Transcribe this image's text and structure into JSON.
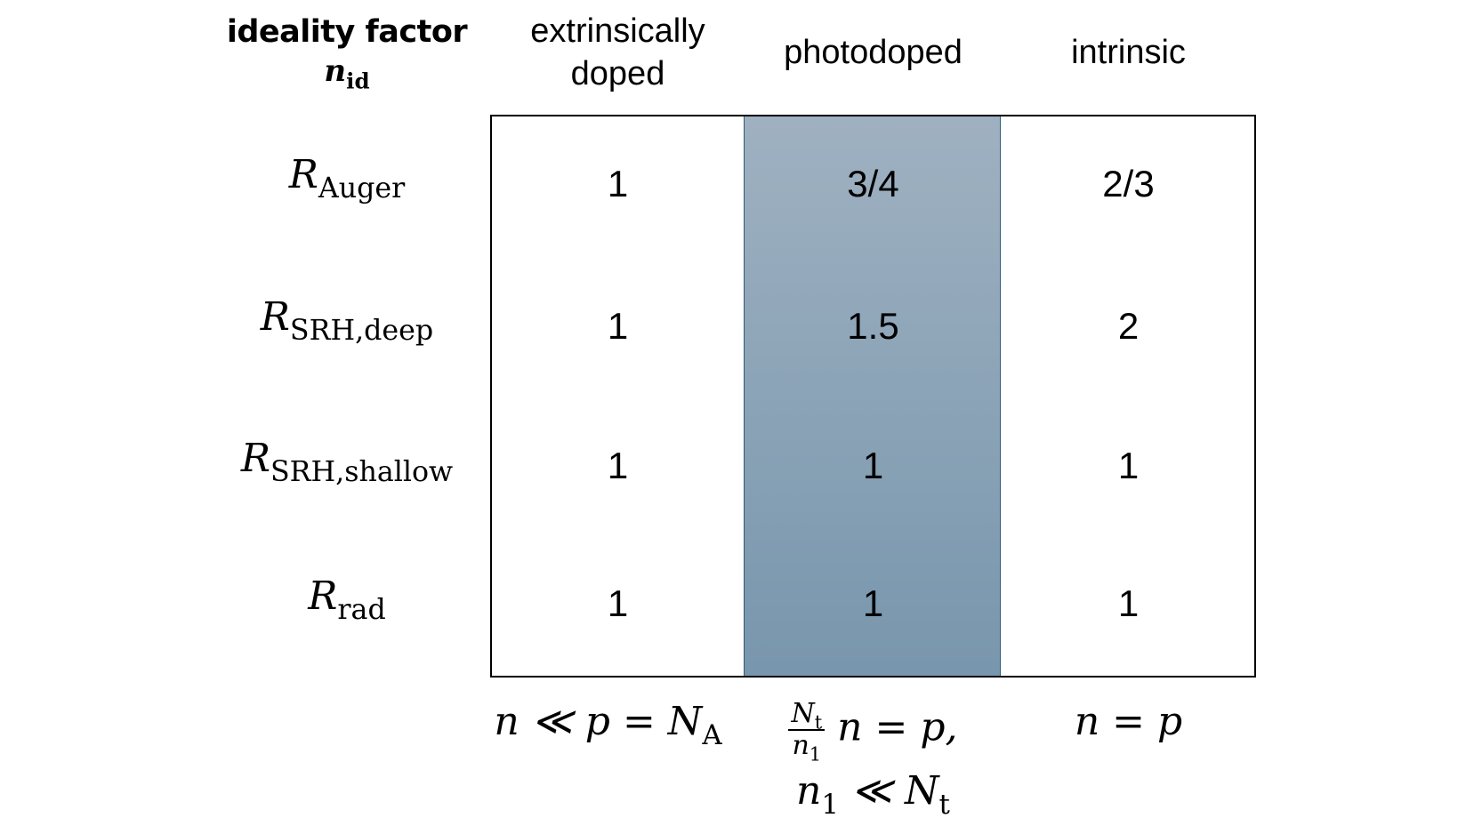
{
  "header": {
    "title": "ideality factor",
    "symbol_base": "n",
    "symbol_sub": "id",
    "columns": [
      {
        "line1": "extrinsically",
        "line2": "doped"
      },
      {
        "line1": "photodoped",
        "line2": ""
      },
      {
        "line1": "intrinsic",
        "line2": ""
      }
    ]
  },
  "rows": [
    {
      "symbol": "R",
      "sub": "Auger",
      "values": [
        "1",
        "3/4",
        "2/3"
      ]
    },
    {
      "symbol": "R",
      "sub": "SRH,deep",
      "values": [
        "1",
        "1.5",
        "2"
      ]
    },
    {
      "symbol": "R",
      "sub": "SRH,shallow",
      "values": [
        "1",
        "1",
        "1"
      ]
    },
    {
      "symbol": "R",
      "sub": "rad",
      "values": [
        "1",
        "1",
        "1"
      ]
    }
  ],
  "conditions": {
    "extrinsic": {
      "text": "n ≪ p = N",
      "sub": "A"
    },
    "photodoped": {
      "frac_num": "N",
      "frac_num_sub": "t",
      "frac_den": "n",
      "frac_den_sub": "1",
      "rest": "n = p,",
      "line2": "n",
      "line2_sub": "1",
      "line2_rest": " ≪ N",
      "line2_rest_sub": "t"
    },
    "intrinsic": {
      "text": "n = p"
    }
  },
  "colors": {
    "shade_top": "#9fb1c1",
    "shade_bottom": "#7896ad",
    "shade_border": "#2e5d75"
  }
}
